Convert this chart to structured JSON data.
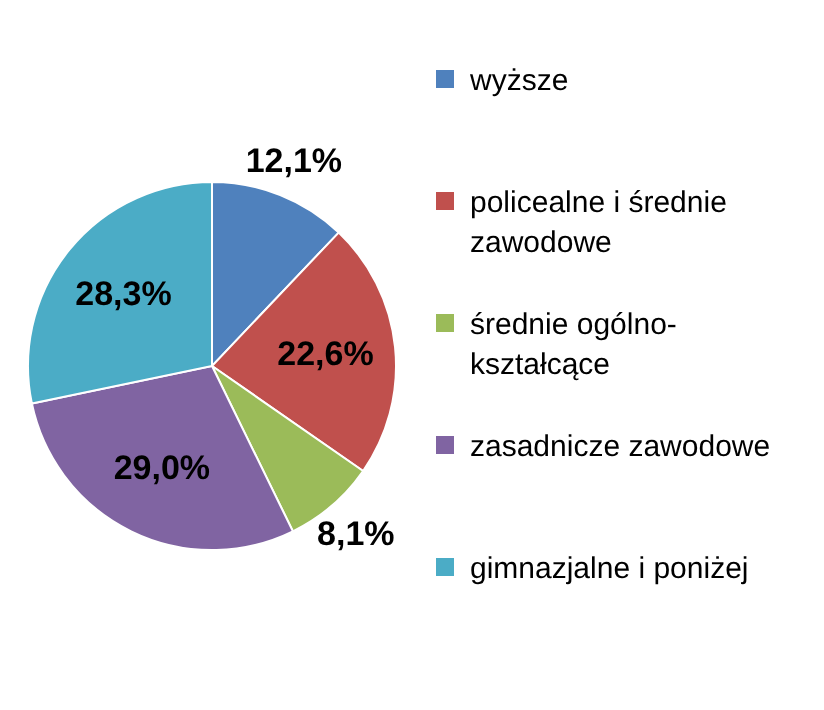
{
  "chart_data": {
    "type": "pie",
    "categories": [
      "wyższe",
      "policealne i średnie zawodowe",
      "średnie ogólno-kształcące",
      "zasadnicze zawodowe",
      "gimnazjalne i poniżej"
    ],
    "values": [
      12.1,
      22.6,
      8.1,
      29.0,
      28.3
    ],
    "colors": [
      "#4f81bd",
      "#c0504d",
      "#9bbb59",
      "#8064a2",
      "#4bacc6"
    ],
    "value_labels": [
      "12,1%",
      "22,6%",
      "8,1%",
      "29,0%",
      "28,3%"
    ],
    "legend": "right"
  }
}
